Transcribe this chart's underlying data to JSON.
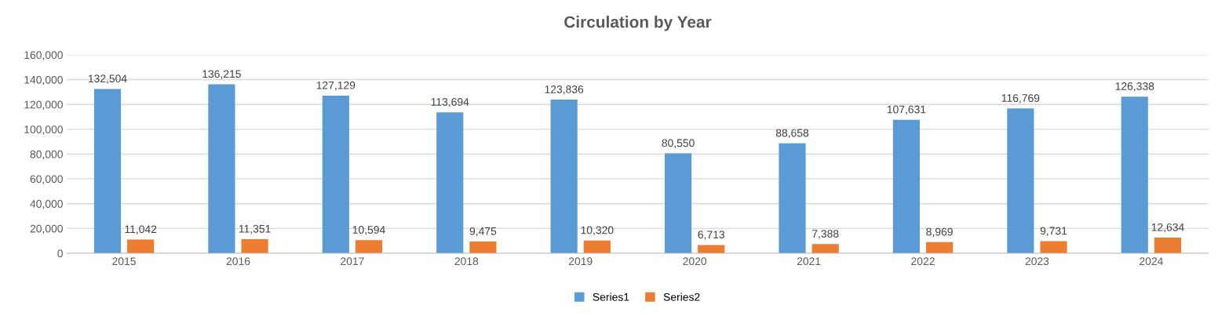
{
  "chart_data": {
    "type": "bar",
    "title": "Circulation by Year",
    "categories": [
      "2015",
      "2016",
      "2017",
      "2018",
      "2019",
      "2020",
      "2021",
      "2022",
      "2023",
      "2024"
    ],
    "series": [
      {
        "name": "Series1",
        "color": "#5b9bd5",
        "values": [
          132504,
          136215,
          127129,
          113694,
          123836,
          80550,
          88658,
          107631,
          116769,
          126338
        ],
        "value_labels": [
          "132,504",
          "136,215",
          "127,129",
          "113,694",
          "123,836",
          "80,550",
          "88,658",
          "107,631",
          "116,769",
          "126,338"
        ]
      },
      {
        "name": "Series2",
        "color": "#ed7d31",
        "values": [
          11042,
          11351,
          10594,
          9475,
          10320,
          6713,
          7388,
          8969,
          9731,
          12634
        ],
        "value_labels": [
          "11,042",
          "11,351",
          "10,594",
          "9,475",
          "10,320",
          "6,713",
          "7,388",
          "8,969",
          "9,731",
          "12,634"
        ]
      }
    ],
    "ylim": [
      0,
      160000
    ],
    "yticks": [
      {
        "value": 0,
        "label": "0"
      },
      {
        "value": 20000,
        "label": "20,000"
      },
      {
        "value": 40000,
        "label": "40,000"
      },
      {
        "value": 60000,
        "label": "60,000"
      },
      {
        "value": 80000,
        "label": "80,000"
      },
      {
        "value": 100000,
        "label": "100,000"
      },
      {
        "value": 120000,
        "label": "120,000"
      },
      {
        "value": 140000,
        "label": "140,000"
      },
      {
        "value": 160000,
        "label": "160,000"
      }
    ],
    "grid": "y",
    "legend": "bottom"
  }
}
